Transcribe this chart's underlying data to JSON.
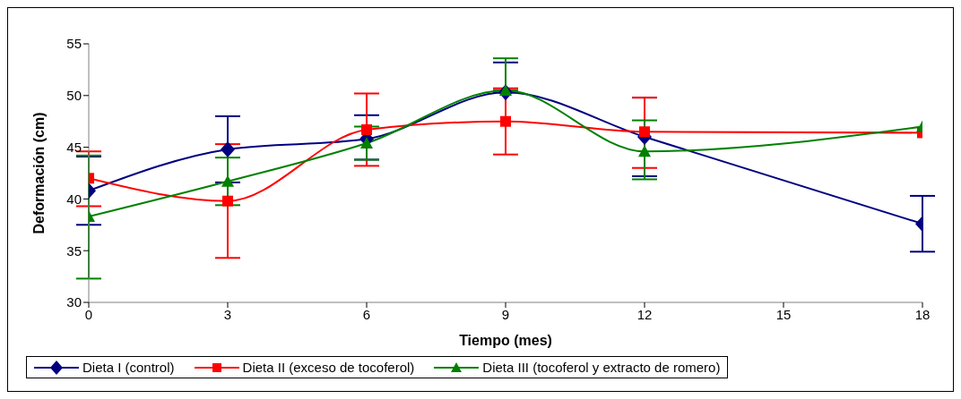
{
  "chart_data": {
    "type": "line",
    "xlabel": "Tiempo (mes)",
    "ylabel": "Deformación (cm)",
    "x": [
      0,
      3,
      6,
      9,
      12,
      18
    ],
    "series": [
      {
        "name": "Dieta I (control)",
        "color": "#000080",
        "marker": "diamond",
        "values": [
          40.8,
          44.8,
          45.8,
          50.3,
          46.0,
          37.6
        ],
        "errors": [
          [
            37.5,
            44.1
          ],
          [
            41.6,
            48.0
          ],
          [
            43.8,
            48.1
          ],
          [
            50.3,
            53.2
          ],
          [
            42.2,
            49.8
          ],
          [
            34.9,
            40.3
          ]
        ]
      },
      {
        "name": "Dieta II (exceso de tocoferol)",
        "color": "#ff0000",
        "marker": "square",
        "values": [
          42.0,
          39.8,
          46.7,
          47.5,
          46.5,
          46.4
        ],
        "errors": [
          [
            39.3,
            44.6
          ],
          [
            34.3,
            45.3
          ],
          [
            43.2,
            50.2
          ],
          [
            44.3,
            50.7
          ],
          [
            43.0,
            49.8
          ],
          null
        ]
      },
      {
        "name": "Dieta III (tocoferol y extracto de romero)",
        "color": "#008000",
        "marker": "triangle",
        "values": [
          38.3,
          41.7,
          45.4,
          50.5,
          44.6,
          47.0
        ],
        "errors": [
          [
            32.3,
            44.2
          ],
          [
            39.4,
            44.0
          ],
          [
            43.8,
            47.0
          ],
          [
            50.5,
            53.6
          ],
          [
            41.9,
            47.6
          ],
          null
        ]
      }
    ],
    "xlim": [
      0,
      18
    ],
    "xticks": [
      0,
      3,
      6,
      9,
      12,
      15,
      18
    ],
    "ylim": [
      30,
      55
    ],
    "yticks": [
      30,
      35,
      40,
      45,
      50,
      55
    ],
    "grid": false,
    "legend": "bottom",
    "line_style": "solid"
  }
}
